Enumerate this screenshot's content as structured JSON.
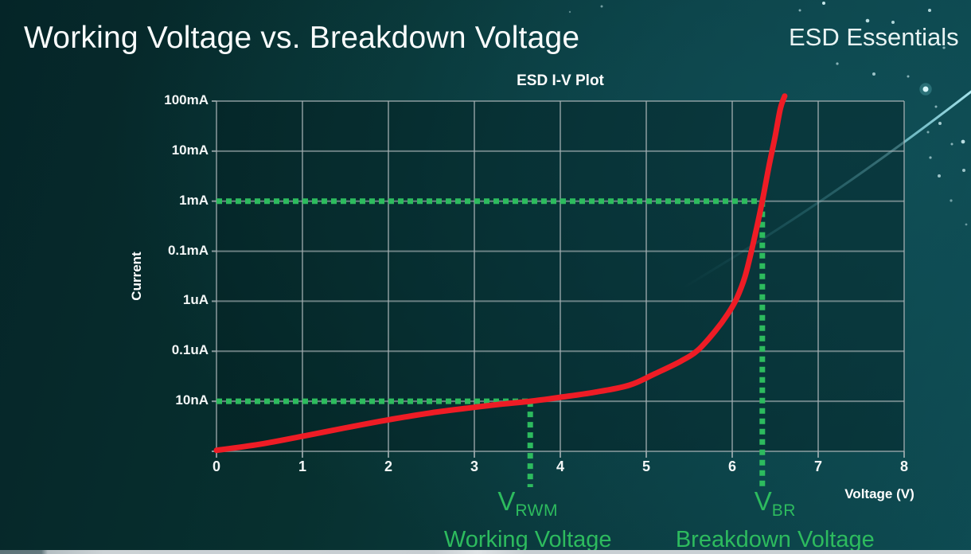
{
  "slide": {
    "title": "Working Voltage vs. Breakdown Voltage",
    "brand": "ESD Essentials"
  },
  "chart_data": {
    "type": "line",
    "title": "ESD I-V Plot",
    "xlabel": "Voltage (V)",
    "ylabel": "Current",
    "x_ticks": [
      "0",
      "1",
      "2",
      "3",
      "4",
      "5",
      "6",
      "7",
      "8"
    ],
    "y_ticks": [
      "100mA",
      "10mA",
      "1mA",
      "0.1mA",
      "1uA",
      "0.1uA",
      "10nA"
    ],
    "xlim": [
      0,
      8
    ],
    "grid": true,
    "legend": "none",
    "series": [
      {
        "color": "#ee1c25",
        "row_scale_note": "row = gridline steps above the bottom axis; labeled gridlines from top are y_ticks (row 7 = 100mA, row 5 = 1mA, row 1 = 10nA, row 0 = bottom axis)",
        "points_v_row": [
          [
            0,
            0.02
          ],
          [
            0.5,
            0.14
          ],
          [
            1,
            0.3
          ],
          [
            1.5,
            0.47
          ],
          [
            2,
            0.63
          ],
          [
            2.5,
            0.77
          ],
          [
            3,
            0.88
          ],
          [
            3.3,
            0.94
          ],
          [
            3.65,
            1.0
          ],
          [
            4,
            1.08
          ],
          [
            4.4,
            1.18
          ],
          [
            4.8,
            1.32
          ],
          [
            5.1,
            1.55
          ],
          [
            5.4,
            1.8
          ],
          [
            5.6,
            2.02
          ],
          [
            5.8,
            2.4
          ],
          [
            5.95,
            2.75
          ],
          [
            6.05,
            3.05
          ],
          [
            6.15,
            3.5
          ],
          [
            6.25,
            4.2
          ],
          [
            6.35,
            5.0
          ],
          [
            6.43,
            5.72
          ],
          [
            6.5,
            6.3
          ],
          [
            6.56,
            6.85
          ],
          [
            6.61,
            7.1
          ]
        ]
      }
    ],
    "annotations": [
      {
        "symbol": "V",
        "subscript": "RWM",
        "label": "Working Voltage",
        "x_value": 3.65,
        "at_current": "10nA",
        "color": "#2dbb5e"
      },
      {
        "symbol": "V",
        "subscript": "BR",
        "label": "Breakdown Voltage",
        "x_value": 6.35,
        "at_current": "1mA",
        "color": "#2dbb5e"
      }
    ],
    "colors": {
      "curve": "#ee1c25",
      "annotation_green": "#2dbb5e",
      "grid": "#a9b3b6",
      "background": "#0a3a3f",
      "text": "#ffffff"
    }
  }
}
